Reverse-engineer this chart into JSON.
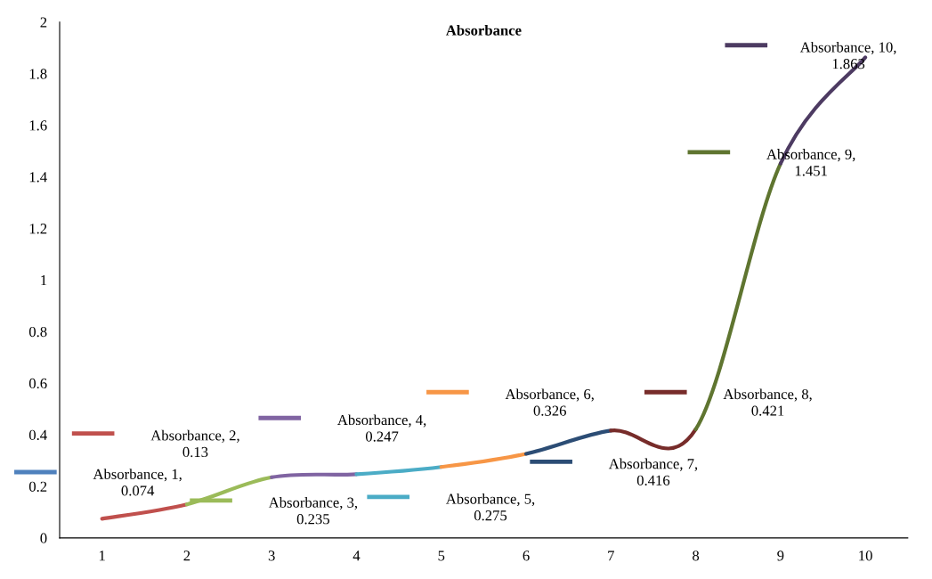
{
  "chart_data": {
    "type": "line",
    "title": "Absorbance",
    "series": [
      {
        "color": "#c0504d",
        "x": [
          1,
          2
        ],
        "values": [
          0.074,
          0.13
        ],
        "value_labels": [
          "Absorbance, 1, 0.074",
          "Absorbance, 2, 0.13"
        ]
      },
      {
        "color": "#9bbb59",
        "x": [
          2,
          3
        ],
        "values": [
          0.13,
          0.235
        ],
        "value_labels": [
          null,
          "Absorbance, 3, 0.235"
        ]
      },
      {
        "color": "#8064a2",
        "x": [
          3,
          4
        ],
        "values": [
          0.235,
          0.247
        ],
        "value_labels": [
          null,
          "Absorbance, 4, 0.247"
        ]
      },
      {
        "color": "#4bacc6",
        "x": [
          4,
          5
        ],
        "values": [
          0.247,
          0.275
        ],
        "value_labels": [
          null,
          "Absorbance, 5, 0.275"
        ]
      },
      {
        "color": "#f79646",
        "x": [
          5,
          6
        ],
        "values": [
          0.275,
          0.326
        ],
        "value_labels": [
          null,
          "Absorbance, 6, 0.326"
        ]
      },
      {
        "color": "#2c4d75",
        "x": [
          6,
          7
        ],
        "values": [
          0.326,
          0.416
        ],
        "value_labels": [
          null,
          "Absorbance, 7, 0.416"
        ]
      },
      {
        "color": "#772c2a",
        "x": [
          7,
          8
        ],
        "values": [
          0.416,
          0.421
        ],
        "value_labels": [
          null,
          "Absorbance, 8, 0.421"
        ]
      },
      {
        "color": "#5f7530",
        "x": [
          8,
          9
        ],
        "values": [
          0.421,
          1.451
        ],
        "value_labels": [
          null,
          "Absorbance, 9, 1.451"
        ]
      },
      {
        "color": "#4d3b62",
        "x": [
          9,
          10
        ],
        "values": [
          1.451,
          1.863
        ],
        "value_labels": [
          null,
          "Absorbance, 10, 1.863"
        ]
      }
    ],
    "xlim": [
      0.5,
      10.5
    ],
    "ylim": [
      0,
      2
    ],
    "xticks": [
      1,
      2,
      3,
      4,
      5,
      6,
      7,
      8,
      9,
      10
    ],
    "yticks": [
      0,
      0.2,
      0.4,
      0.6,
      0.8,
      1,
      1.2,
      1.4,
      1.6,
      1.8,
      2
    ]
  }
}
